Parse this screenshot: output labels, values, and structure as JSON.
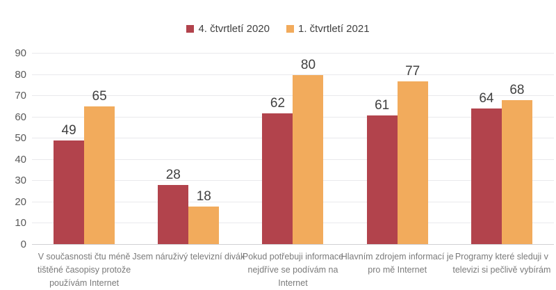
{
  "chart_data": {
    "type": "bar",
    "title": "",
    "xlabel": "",
    "ylabel": "",
    "ylim": [
      0,
      90
    ],
    "ytick_step": 10,
    "yticks": [
      0,
      10,
      20,
      30,
      40,
      50,
      60,
      70,
      80,
      90
    ],
    "grid": "horizontal",
    "legend_position": "top-center",
    "value_labels": true,
    "categories": [
      "V současnosti čtu méně tištěné časopisy protože používám Internet",
      "Jsem náruživý televizní divák",
      "Pokud potřebuji informace nejdříve se podívám na Internet",
      "Hlavním zdrojem informací je pro mě Internet",
      "Programy které sleduji v televizi si pečlivě vybírám"
    ],
    "categories_wrapped": [
      [
        "V současnosti čtu méně",
        "tištěné časopisy protože",
        "používám Internet"
      ],
      [
        "Jsem náruživý televizní divák"
      ],
      [
        "Pokud potřebuji informace",
        "nejdříve se podívám na",
        "Internet"
      ],
      [
        "Hlavním zdrojem informací je",
        "pro mě Internet"
      ],
      [
        "Programy které sleduji v",
        "televizi si pečlivě vybírám"
      ]
    ],
    "series": [
      {
        "name": "4. čtvrtletí 2020",
        "color": "#b2434c",
        "values": [
          49,
          28,
          62,
          61,
          64
        ]
      },
      {
        "name": "1. čtvrtletí 2021",
        "color": "#f2ab5c",
        "values": [
          65,
          18,
          80,
          77,
          68
        ]
      }
    ]
  },
  "colors": {
    "series1": "#b2434c",
    "series2": "#f2ab5c",
    "gridline": "#e9e9ec",
    "axis_line": "#d0d0d3",
    "tick_text": "#595959",
    "category_text": "#7a7a7a",
    "value_text": "#404040",
    "background": "#ffffff"
  }
}
